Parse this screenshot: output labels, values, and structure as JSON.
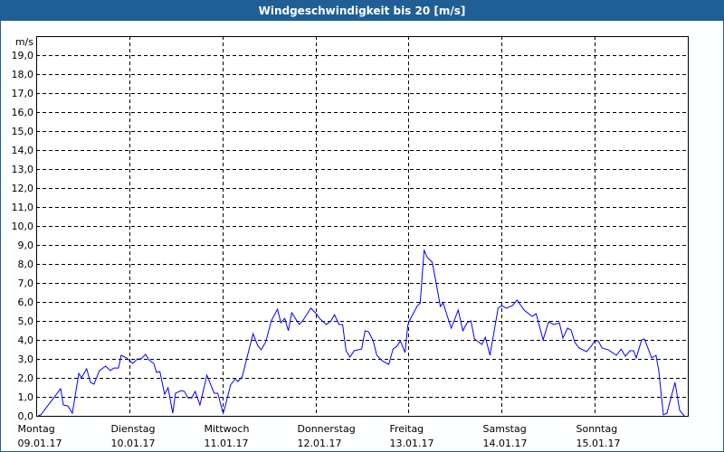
{
  "window": {
    "title": "Windgeschwindigkeit bis 20 [m/s]"
  },
  "chart_data": {
    "type": "line",
    "title": "Windgeschwindigkeit bis 20 [m/s]",
    "ylabel": "m/s",
    "xlabel": "",
    "ylim": [
      0,
      20
    ],
    "xlim_hours": [
      0,
      168
    ],
    "grid": true,
    "yticks": [
      "0,0",
      "1,0",
      "2,0",
      "3,0",
      "4,0",
      "5,0",
      "6,0",
      "7,0",
      "8,0",
      "9,0",
      "10,0",
      "11,0",
      "12,0",
      "13,0",
      "14,0",
      "15,0",
      "16,0",
      "17,0",
      "18,0",
      "19,0"
    ],
    "xticks": [
      {
        "day": "Montag",
        "date": "09.01.17"
      },
      {
        "day": "Dienstag",
        "date": "10.01.17"
      },
      {
        "day": "Mittwoch",
        "date": "11.01.17"
      },
      {
        "day": "Donnerstag",
        "date": "12.01.17"
      },
      {
        "day": "Freitag",
        "date": "13.01.17"
      },
      {
        "day": "Samstag",
        "date": "14.01.17"
      },
      {
        "day": "Sonntag",
        "date": "15.01.17"
      }
    ],
    "series": [
      {
        "name": "Windgeschwindigkeit",
        "color": "#0000ff",
        "x_hours": [
          0.5,
          1.2,
          6.3,
          7.0,
          8.2,
          9.3,
          11.0,
          11.7,
          13.0,
          14.0,
          14.9,
          16.3,
          17.9,
          19.1,
          20.0,
          21.2,
          21.9,
          23.3,
          24.9,
          26.1,
          27.0,
          28.2,
          29.1,
          30.3,
          31.0,
          31.9,
          33.1,
          34.0,
          35.2,
          35.9,
          37.3,
          38.2,
          39.1,
          40.1,
          41.0,
          42.2,
          44.0,
          45.9,
          46.8,
          48.2,
          48.5,
          50.1,
          51.3,
          52.0,
          53.1,
          55.9,
          57.1,
          58.0,
          59.2,
          60.6,
          62.2,
          63.1,
          64.1,
          65.0,
          65.9,
          67.8,
          68.7,
          70.8,
          72.2,
          73.2,
          74.8,
          76.0,
          76.9,
          78.1,
          79.0,
          79.9,
          80.9,
          82.0,
          83.9,
          84.8,
          85.7,
          86.9,
          87.8,
          89.2,
          90.9,
          92.0,
          93.0,
          93.9,
          95.1,
          95.8,
          96.2,
          98.3,
          99.0,
          100.0,
          100.9,
          102.1,
          103.0,
          104.2,
          104.9,
          107.0,
          108.8,
          110.0,
          111.1,
          112.1,
          113.0,
          114.9,
          115.8,
          117.0,
          119.1,
          120.0,
          121.2,
          122.8,
          124.0,
          125.8,
          127.9,
          128.9,
          130.7,
          132.1,
          133.5,
          134.9,
          135.8,
          137.0,
          137.9,
          138.9,
          140.0,
          141.9,
          143.1,
          144.0,
          144.9,
          145.9,
          147.5,
          149.6,
          150.8,
          151.9,
          153.1,
          154.0,
          154.7,
          156.1,
          156.8,
          158.7,
          159.8,
          160.5,
          161.7,
          162.6,
          164.7,
          165.9,
          167.1
        ],
        "values": [
          0.0,
          0.05,
          1.43,
          0.57,
          0.52,
          0.14,
          2.24,
          2.0,
          2.48,
          1.76,
          1.67,
          2.38,
          2.62,
          2.38,
          2.52,
          2.52,
          3.19,
          3.05,
          2.76,
          3.0,
          3.0,
          3.24,
          2.95,
          2.76,
          2.29,
          2.33,
          1.14,
          1.48,
          0.14,
          1.19,
          1.33,
          1.29,
          0.95,
          0.95,
          1.29,
          0.57,
          2.14,
          1.19,
          1.19,
          0.14,
          0.33,
          1.62,
          1.95,
          1.81,
          2.05,
          4.33,
          3.71,
          3.48,
          3.9,
          5.0,
          5.62,
          4.9,
          5.14,
          4.48,
          5.43,
          4.81,
          5.0,
          5.67,
          5.38,
          5.1,
          4.81,
          5.0,
          5.33,
          4.81,
          4.81,
          3.43,
          3.1,
          3.43,
          3.52,
          4.48,
          4.43,
          3.95,
          3.19,
          2.9,
          2.71,
          3.52,
          3.67,
          3.95,
          3.33,
          4.76,
          5.0,
          5.81,
          5.95,
          8.71,
          8.33,
          8.1,
          7.14,
          5.76,
          5.95,
          4.62,
          5.57,
          4.48,
          4.9,
          5.0,
          4.05,
          3.76,
          4.14,
          3.19,
          5.67,
          5.81,
          5.67,
          5.81,
          6.1,
          5.57,
          5.24,
          5.38,
          4.0,
          4.95,
          4.81,
          4.9,
          4.1,
          4.62,
          4.52,
          3.86,
          3.57,
          3.38,
          3.67,
          3.95,
          3.95,
          3.57,
          3.48,
          3.19,
          3.52,
          3.14,
          3.43,
          3.43,
          3.05,
          4.0,
          4.05,
          3.05,
          3.19,
          2.38,
          0.05,
          0.14,
          1.76,
          0.29,
          0.0
        ]
      }
    ]
  }
}
